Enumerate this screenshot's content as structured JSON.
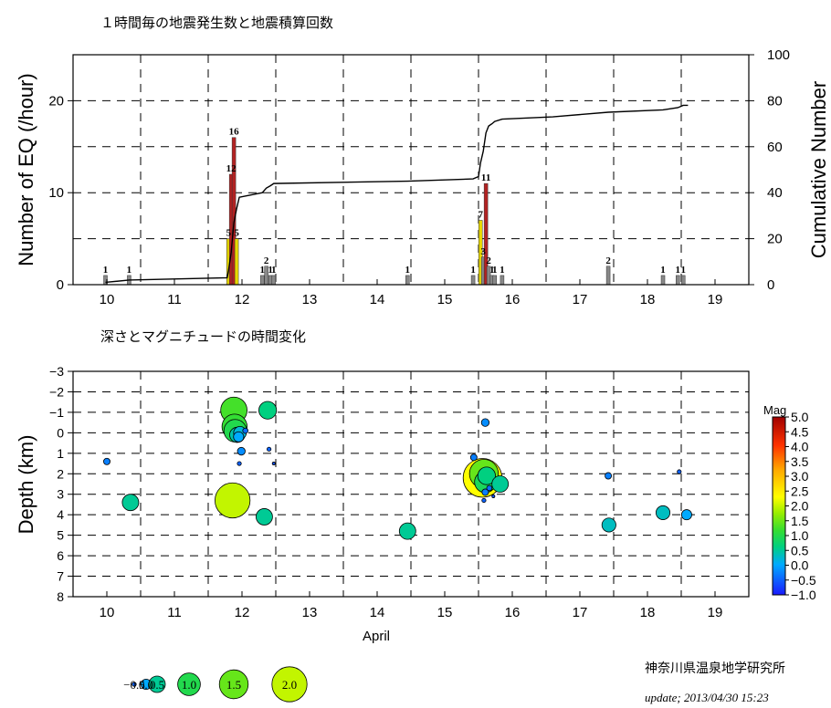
{
  "top_chart": {
    "title": "１時間毎の地震発生数と地震積算回数",
    "ylabel": "Number of EQ (/hour)",
    "y2label": "Cumulative Number",
    "y_ticks": [
      "0",
      "10",
      "20"
    ],
    "y2_ticks": [
      "0",
      "20",
      "40",
      "60",
      "80",
      "100"
    ],
    "x_ticks": [
      "10",
      "11",
      "12",
      "13",
      "14",
      "15",
      "16",
      "17",
      "18",
      "19"
    ]
  },
  "bottom_chart": {
    "title": "深さとマグニチュードの時間変化",
    "ylabel": "Depth (km)",
    "xlabel": "April",
    "y_ticks": [
      "−3",
      "−2",
      "−1",
      "0",
      "1",
      "2",
      "3",
      "4",
      "5",
      "6",
      "7",
      "8"
    ],
    "x_ticks": [
      "10",
      "11",
      "12",
      "13",
      "14",
      "15",
      "16",
      "17",
      "18",
      "19"
    ]
  },
  "colorbar": {
    "title": "Mag",
    "labels": [
      "5.0",
      "4.5",
      "4.0",
      "3.5",
      "3.0",
      "2.5",
      "2.0",
      "1.5",
      "1.0",
      "0.5",
      "0.0",
      "−0.5",
      "−1.0"
    ]
  },
  "size_legend": {
    "labels": [
      "−0.5",
      "0.0",
      "0.5",
      "1.0",
      "1.5",
      "2.0"
    ]
  },
  "footer": {
    "institute": "神奈川県温泉地学研究所",
    "update": "update; 2013/04/30 15:23"
  },
  "chart_data": [
    {
      "type": "bar",
      "title": "１時間毎の地震発生数と地震積算回数",
      "xlabel": "",
      "ylabel": "Number of EQ (/hour)",
      "y2label": "Cumulative Number",
      "xlim": [
        9.5,
        19.5
      ],
      "ylim": [
        0,
        25
      ],
      "y2lim": [
        0,
        100
      ],
      "x_ticks": [
        10,
        11,
        12,
        13,
        14,
        15,
        16,
        17,
        18,
        19
      ],
      "grid": true,
      "bars": [
        {
          "x": 9.98,
          "value": 1,
          "label": "1"
        },
        {
          "x": 10.33,
          "value": 1,
          "label": "1"
        },
        {
          "x": 11.8,
          "value": 5,
          "label": "5"
        },
        {
          "x": 11.84,
          "value": 12,
          "label": "12"
        },
        {
          "x": 11.88,
          "value": 16,
          "label": "16"
        },
        {
          "x": 11.92,
          "value": 5,
          "label": "5"
        },
        {
          "x": 12.3,
          "value": 1,
          "label": "1"
        },
        {
          "x": 12.36,
          "value": 2,
          "label": "2"
        },
        {
          "x": 12.42,
          "value": 1,
          "label": "1"
        },
        {
          "x": 12.47,
          "value": 1,
          "label": "1"
        },
        {
          "x": 14.45,
          "value": 1,
          "label": "1"
        },
        {
          "x": 15.42,
          "value": 1,
          "label": "1"
        },
        {
          "x": 15.53,
          "value": 7,
          "label": "7"
        },
        {
          "x": 15.57,
          "value": 3,
          "label": "3"
        },
        {
          "x": 15.61,
          "value": 11,
          "label": "11"
        },
        {
          "x": 15.65,
          "value": 2,
          "label": "2"
        },
        {
          "x": 15.7,
          "value": 1,
          "label": "1"
        },
        {
          "x": 15.74,
          "value": 1,
          "label": "1"
        },
        {
          "x": 15.85,
          "value": 1,
          "label": "1"
        },
        {
          "x": 17.42,
          "value": 2,
          "label": "2"
        },
        {
          "x": 18.23,
          "value": 1,
          "label": "1"
        },
        {
          "x": 18.45,
          "value": 1,
          "label": "1"
        },
        {
          "x": 18.53,
          "value": 1,
          "label": "1"
        }
      ],
      "cumulative": {
        "x": [
          9.98,
          10.33,
          11.78,
          11.8,
          11.84,
          11.88,
          11.92,
          11.96,
          12.3,
          12.36,
          12.42,
          12.47,
          14.45,
          15.42,
          15.5,
          15.53,
          15.57,
          15.61,
          15.65,
          15.7,
          15.74,
          15.85,
          16.6,
          17.42,
          18.23,
          18.45,
          18.53,
          18.6
        ],
        "y": [
          1,
          2,
          3,
          6,
          14,
          27,
          33,
          38,
          40,
          42,
          43,
          44,
          45,
          46,
          47,
          53,
          58,
          66,
          69,
          70,
          71,
          72,
          73,
          75,
          76,
          77,
          78,
          78
        ]
      }
    },
    {
      "type": "scatter",
      "title": "深さとマグニチュードの時間変化",
      "xlabel": "April",
      "ylabel": "Depth (km)",
      "xlim": [
        9.5,
        19.5
      ],
      "ylim": [
        8,
        -3
      ],
      "x_ticks": [
        10,
        11,
        12,
        13,
        14,
        15,
        16,
        17,
        18,
        19
      ],
      "y_ticks": [
        -3,
        -2,
        -1,
        0,
        1,
        2,
        3,
        4,
        5,
        6,
        7,
        8
      ],
      "color_scale": {
        "title": "Mag",
        "min": -1.0,
        "max": 5.0
      },
      "grid": true,
      "points": [
        {
          "x": 10.0,
          "depth": 1.4,
          "mag": -0.3
        },
        {
          "x": 10.35,
          "depth": 3.4,
          "mag": 0.5
        },
        {
          "x": 11.86,
          "depth": 3.3,
          "mag": 2.0
        },
        {
          "x": 11.88,
          "depth": -1.1,
          "mag": 1.3
        },
        {
          "x": 11.89,
          "depth": -0.3,
          "mag": 1.2
        },
        {
          "x": 11.9,
          "depth": -0.1,
          "mag": 1.0
        },
        {
          "x": 11.93,
          "depth": 0.1,
          "mag": 0.4
        },
        {
          "x": 11.95,
          "depth": 0.2,
          "mag": 0.0
        },
        {
          "x": 11.97,
          "depth": 0.0,
          "mag": 0.2
        },
        {
          "x": 11.99,
          "depth": 0.9,
          "mag": -0.2
        },
        {
          "x": 11.96,
          "depth": 1.5,
          "mag": -0.5
        },
        {
          "x": 12.05,
          "depth": -0.1,
          "mag": -0.4
        },
        {
          "x": 12.33,
          "depth": 4.1,
          "mag": 0.5
        },
        {
          "x": 12.38,
          "depth": -1.1,
          "mag": 0.6
        },
        {
          "x": 12.4,
          "depth": 0.8,
          "mag": -0.5
        },
        {
          "x": 12.47,
          "depth": 1.5,
          "mag": -0.6
        },
        {
          "x": 14.45,
          "depth": 4.8,
          "mag": 0.5
        },
        {
          "x": 15.43,
          "depth": 1.2,
          "mag": -0.3
        },
        {
          "x": 15.56,
          "depth": 2.2,
          "mag": 2.3
        },
        {
          "x": 15.58,
          "depth": 2.0,
          "mag": 1.5
        },
        {
          "x": 15.6,
          "depth": 2.4,
          "mag": 0.9
        },
        {
          "x": 15.62,
          "depth": 2.1,
          "mag": 0.6
        },
        {
          "x": 15.6,
          "depth": 2.9,
          "mag": -0.3
        },
        {
          "x": 15.58,
          "depth": 3.3,
          "mag": -0.5
        },
        {
          "x": 15.66,
          "depth": 2.7,
          "mag": -0.4
        },
        {
          "x": 15.72,
          "depth": 3.1,
          "mag": -0.6
        },
        {
          "x": 15.6,
          "depth": -0.5,
          "mag": -0.2
        },
        {
          "x": 15.82,
          "depth": 2.5,
          "mag": 0.5
        },
        {
          "x": 17.42,
          "depth": 2.1,
          "mag": -0.3
        },
        {
          "x": 17.43,
          "depth": 4.5,
          "mag": 0.3
        },
        {
          "x": 18.23,
          "depth": 3.9,
          "mag": 0.3
        },
        {
          "x": 18.47,
          "depth": 1.9,
          "mag": -0.5
        },
        {
          "x": 18.58,
          "depth": 4.0,
          "mag": 0.0
        }
      ]
    }
  ]
}
